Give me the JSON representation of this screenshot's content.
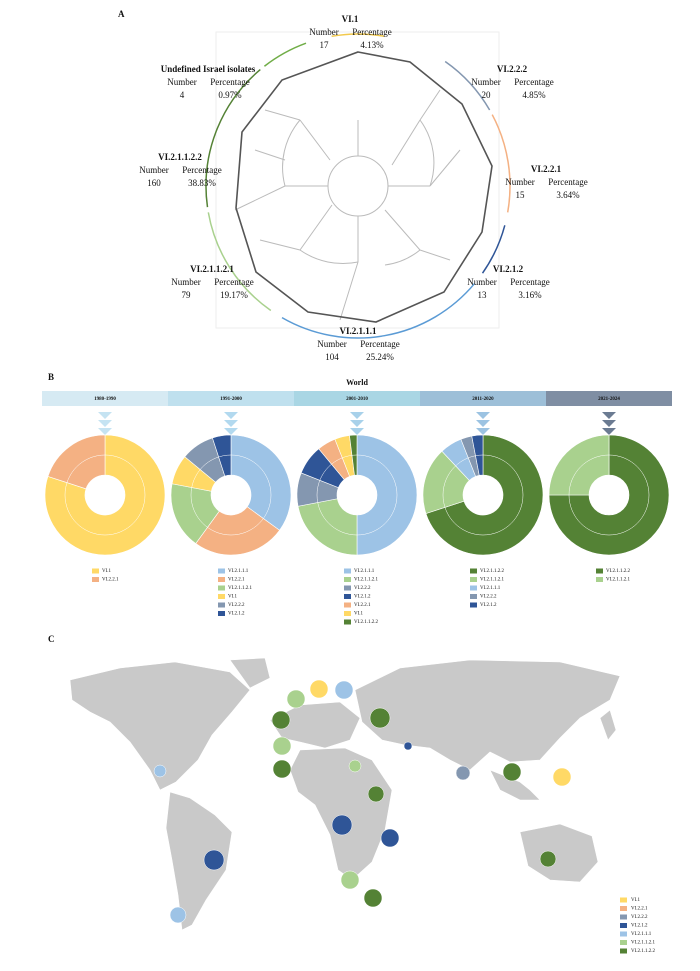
{
  "panel_a": {
    "letter": "A",
    "headers": [
      "Number",
      "Percentage"
    ],
    "clades": [
      {
        "name": "VI.1",
        "number": 17,
        "percentage": "4.13%",
        "color": "#f2c94c"
      },
      {
        "name": "VI.2.2.2",
        "number": 20,
        "percentage": "4.85%",
        "color": "#8497b0"
      },
      {
        "name": "VI.2.2.1",
        "number": 15,
        "percentage": "3.64%",
        "color": "#f4b183"
      },
      {
        "name": "VI.2.1.2",
        "number": 13,
        "percentage": "3.16%",
        "color": "#2f5597"
      },
      {
        "name": "VI.2.1.1.1",
        "number": 104,
        "percentage": "25.24%",
        "color": "#5b9bd5"
      },
      {
        "name": "VI.2.1.1.2.1",
        "number": 79,
        "percentage": "19.17%",
        "color": "#a9d18e"
      },
      {
        "name": "VI.2.1.1.2.2",
        "number": 160,
        "percentage": "38.83%",
        "color": "#548235"
      },
      {
        "name": "Undefined Israel isolates",
        "number": 4,
        "percentage": "0.97%",
        "color": "#70ad47"
      }
    ]
  },
  "panel_b": {
    "letter": "B",
    "title": "World"
  },
  "chart_data": [
    {
      "type": "pie",
      "title": "1980-1990",
      "categories": [
        "VI.1",
        "VI.2.2.1"
      ],
      "values": [
        80,
        20
      ],
      "colors": [
        "#ffd966",
        "#f4b183"
      ]
    },
    {
      "type": "pie",
      "title": "1991-2000",
      "categories": [
        "VI.2.1.1.1",
        "VI.2.2.1",
        "VI.2.1.1.2.1",
        "VI.1",
        "VI.2.2.2",
        "VI.2.1.2"
      ],
      "values": [
        35,
        25,
        18,
        8,
        9,
        5
      ],
      "colors": [
        "#9dc3e6",
        "#f4b183",
        "#a9d18e",
        "#ffd966",
        "#8497b0",
        "#2f5597"
      ]
    },
    {
      "type": "pie",
      "title": "2001-2010",
      "categories": [
        "VI.2.1.1.1",
        "VI.2.1.1.2.1",
        "VI.2.2.2",
        "VI.2.1.2",
        "VI.2.2.1",
        "VI.1",
        "VI.2.1.1.2.2"
      ],
      "values": [
        50,
        22,
        9,
        8,
        5,
        4,
        2
      ],
      "colors": [
        "#9dc3e6",
        "#a9d18e",
        "#8497b0",
        "#2f5597",
        "#f4b183",
        "#ffd966",
        "#548235"
      ]
    },
    {
      "type": "pie",
      "title": "2011-2020",
      "categories": [
        "VI.2.1.1.2.2",
        "VI.2.1.1.2.1",
        "VI.2.1.1.1",
        "VI.2.2.2",
        "VI.2.1.2"
      ],
      "values": [
        70,
        18,
        6,
        3,
        3
      ],
      "colors": [
        "#548235",
        "#a9d18e",
        "#9dc3e6",
        "#8497b0",
        "#2f5597"
      ]
    },
    {
      "type": "pie",
      "title": "2021-2024",
      "categories": [
        "VI.2.1.1.2.2",
        "VI.2.1.1.2.1"
      ],
      "values": [
        75,
        25
      ],
      "colors": [
        "#548235",
        "#a9d18e"
      ]
    }
  ],
  "panel_c": {
    "letter": "C",
    "legend": [
      {
        "name": "VI.1",
        "color": "#ffd966"
      },
      {
        "name": "VI.2.2.1",
        "color": "#f4b183"
      },
      {
        "name": "VI.2.2.2",
        "color": "#8497b0"
      },
      {
        "name": "VI.2.1.2",
        "color": "#2f5597"
      },
      {
        "name": "VI.2.1.1.1",
        "color": "#9dc3e6"
      },
      {
        "name": "VI.2.1.1.2.1",
        "color": "#a9d18e"
      },
      {
        "name": "VI.2.1.1.2.2",
        "color": "#548235"
      }
    ]
  }
}
